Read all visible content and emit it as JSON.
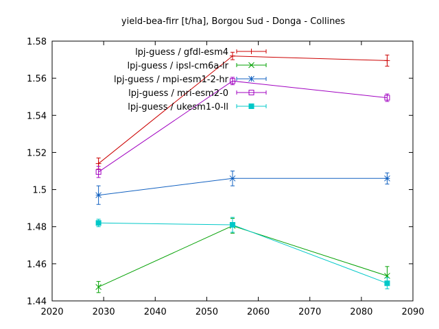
{
  "chart_data": {
    "type": "line",
    "title": "yield-bea-firr [t/ha], Borgou Sud - Donga - Collines",
    "xlabel": "",
    "ylabel": "",
    "xlim": [
      2020,
      2090
    ],
    "ylim": [
      1.44,
      1.58
    ],
    "xticks": [
      2020,
      2030,
      2040,
      2050,
      2060,
      2070,
      2080,
      2090
    ],
    "yticks": [
      1.44,
      1.46,
      1.48,
      1.5,
      1.52,
      1.54,
      1.56,
      1.58
    ],
    "ytick_labels": [
      "1.44",
      "1.46",
      "1.48",
      "1.5",
      "1.52",
      "1.54",
      "1.56",
      "1.58"
    ],
    "legend_position": "top-left",
    "grid": false,
    "series": [
      {
        "name": "lpj-guess / gfdl-esm4",
        "color": "#cc0000",
        "marker": "plus",
        "x": [
          2029,
          2055,
          2085
        ],
        "y": [
          1.514,
          1.572,
          1.5695
        ],
        "err": [
          0.003,
          0.002,
          0.003
        ]
      },
      {
        "name": "lpj-guess / ipsl-cm6a-lr",
        "color": "#00a000",
        "marker": "x",
        "x": [
          2029,
          2055,
          2085
        ],
        "y": [
          1.4475,
          1.4805,
          1.4535
        ],
        "err": [
          0.003,
          0.004,
          0.005
        ]
      },
      {
        "name": "lpj-guess / mpi-esm1-2-hr",
        "color": "#1060c0",
        "marker": "star",
        "x": [
          2029,
          2055,
          2085
        ],
        "y": [
          1.497,
          1.506,
          1.506
        ],
        "err": [
          0.005,
          0.004,
          0.003
        ]
      },
      {
        "name": "lpj-guess / mri-esm2-0",
        "color": "#a000c0",
        "marker": "open-square",
        "x": [
          2029,
          2055,
          2085
        ],
        "y": [
          1.5095,
          1.5585,
          1.5495
        ],
        "err": [
          0.003,
          0.002,
          0.002
        ]
      },
      {
        "name": "lpj-guess / ukesm1-0-ll",
        "color": "#00c8c8",
        "marker": "filled-square",
        "x": [
          2029,
          2055,
          2085
        ],
        "y": [
          1.482,
          1.481,
          1.4495
        ],
        "err": [
          0.002,
          0.004,
          0.003
        ]
      }
    ]
  }
}
